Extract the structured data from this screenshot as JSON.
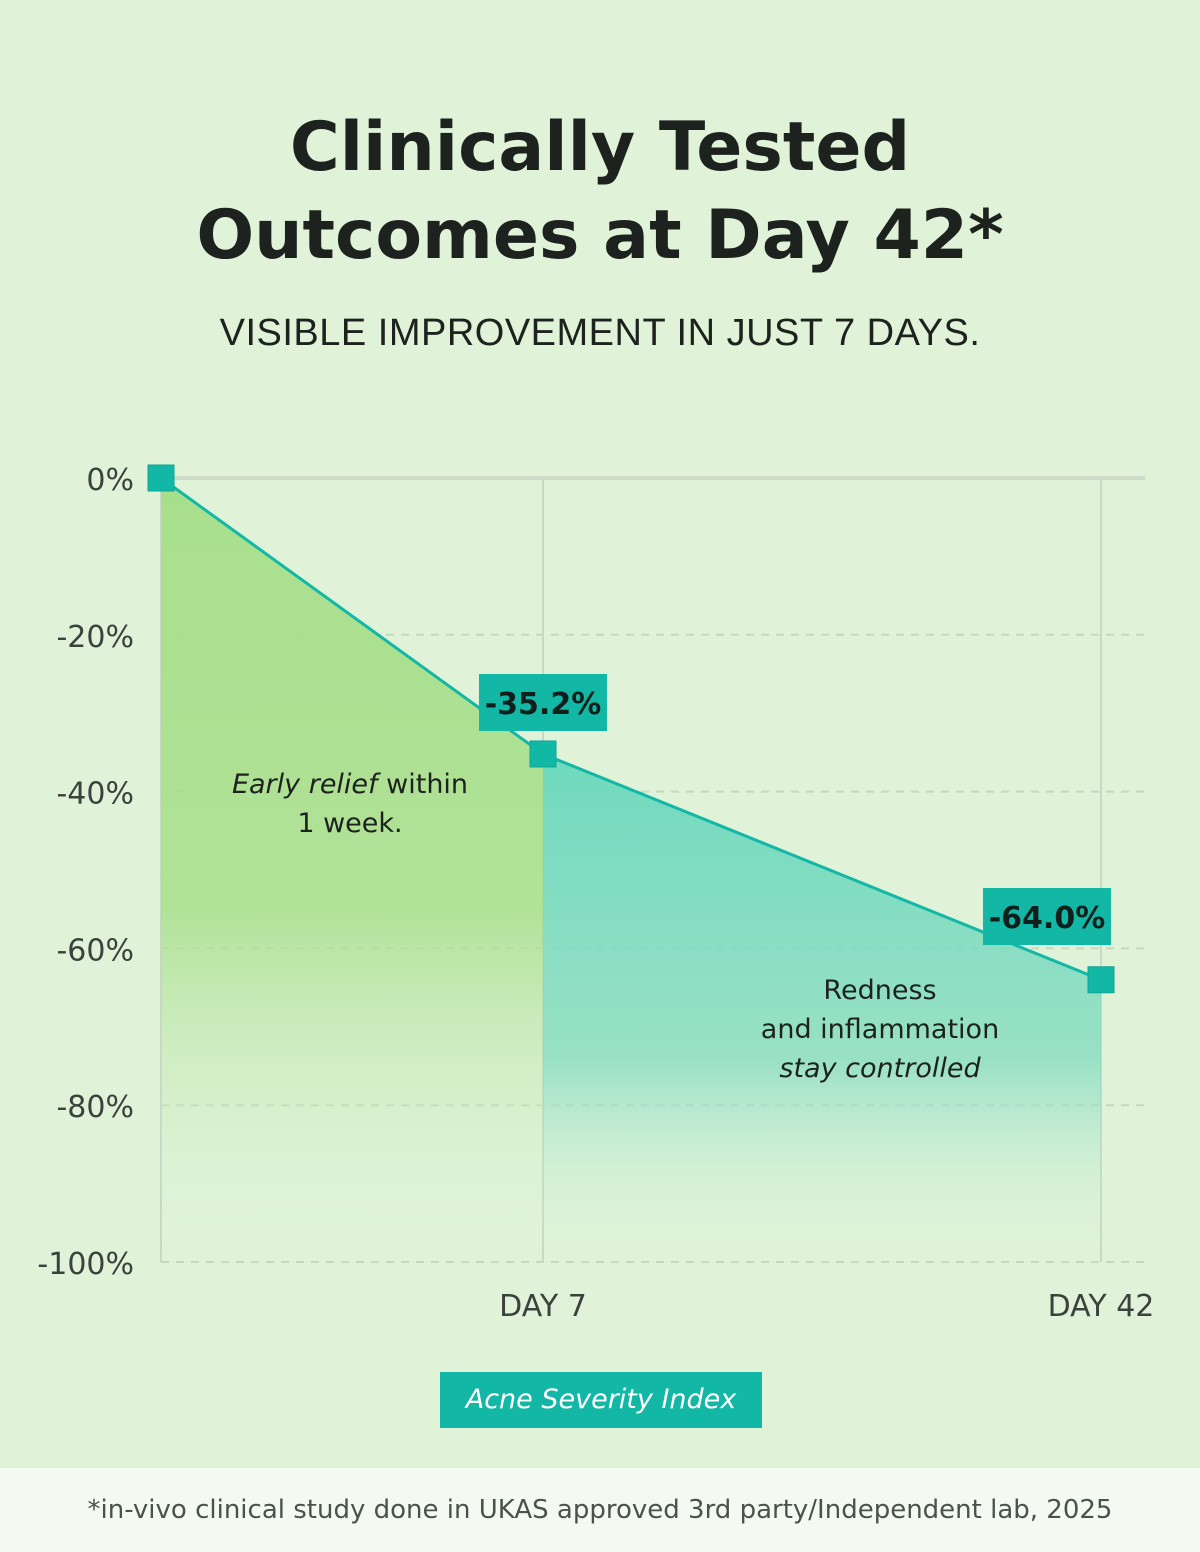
{
  "header": {
    "title_line1": "Clinically Tested",
    "title_line2": "Outcomes at Day 42*",
    "subtitle": "VISIBLE IMPROVEMENT IN JUST 7 DAYS."
  },
  "annotations": {
    "early_italic": "Early relief",
    "early_rest": " within",
    "early_line2": "1 week.",
    "redness_line1": "Redness",
    "redness_line2": "and inflammation",
    "redness_line3": "stay controlled"
  },
  "footer": {
    "footnote": "*in-vivo clinical study done in UKAS approved 3rd party/Independent lab, 2025"
  },
  "colors": {
    "background": "#e0f3d9",
    "accent": "#13b7a6",
    "fill_early": "#9edc8a",
    "fill_late": "#5fd4b7",
    "grid": "#c5d8c0"
  },
  "chart_data": {
    "type": "area",
    "x": [
      0,
      7,
      42
    ],
    "x_tick_labels": [
      "",
      "DAY 7",
      "DAY 42"
    ],
    "y_tick_labels": [
      "0%",
      "-20%",
      "-40%",
      "-60%",
      "-80%",
      "-100%"
    ],
    "y_ticks": [
      0,
      -20,
      -40,
      -60,
      -80,
      -100
    ],
    "ylim": [
      -100,
      0
    ],
    "series": [
      {
        "name": "Acne Severity Index",
        "values": [
          0,
          -35.2,
          -64.0
        ],
        "data_labels": [
          "",
          "-35.2%",
          "-64.0%"
        ]
      }
    ],
    "grid": true,
    "legend": "bottom-center"
  }
}
